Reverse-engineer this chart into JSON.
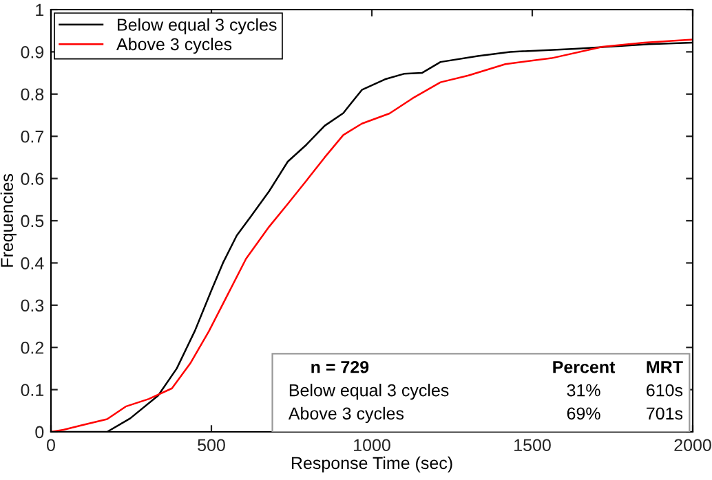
{
  "chart_data": {
    "type": "line",
    "xlabel": "Response Time (sec)",
    "ylabel": "Frequencies",
    "xlim": [
      0,
      2000
    ],
    "xticks": [
      0,
      500,
      1000,
      1500,
      2000
    ],
    "ylim": [
      0,
      1
    ],
    "yticks": [
      0,
      0.1,
      0.2,
      0.3,
      0.4,
      0.5,
      0.6,
      0.7,
      0.8,
      0.9,
      1
    ],
    "grid": false,
    "legend": "top left",
    "line_style": "solid",
    "marker": "none",
    "series": [
      {
        "name": "Below equal 3 cycles",
        "color": "#000000",
        "x": [
          0,
          175,
          247,
          334,
          392,
          449,
          500,
          536,
          579,
          623,
          680,
          738,
          796,
          853,
          911,
          969,
          1041,
          1100,
          1156,
          1214,
          1330,
          1431,
          1633,
          1864,
          2000
        ],
        "values": [
          0,
          0,
          0.032,
          0.086,
          0.15,
          0.24,
          0.335,
          0.4,
          0.465,
          0.51,
          0.57,
          0.64,
          0.68,
          0.725,
          0.755,
          0.81,
          0.835,
          0.848,
          0.85,
          0.876,
          0.89,
          0.9,
          0.907,
          0.918,
          0.922
        ]
      },
      {
        "name": "Above 3 cycles",
        "color": "#ff0000",
        "x": [
          0,
          39,
          97,
          175,
          233,
          305,
          377,
          434,
          492,
          550,
          608,
          680,
          738,
          796,
          853,
          911,
          969,
          1055,
          1127,
          1214,
          1301,
          1416,
          1560,
          1719,
          1849,
          2000
        ],
        "values": [
          0,
          0.005,
          0.016,
          0.03,
          0.06,
          0.078,
          0.103,
          0.162,
          0.238,
          0.324,
          0.41,
          0.486,
          0.54,
          0.595,
          0.65,
          0.703,
          0.73,
          0.754,
          0.79,
          0.828,
          0.844,
          0.871,
          0.885,
          0.912,
          0.922,
          0.929
        ]
      }
    ],
    "annotations": [
      "n = 729",
      "Percent",
      "MRT",
      "Below equal 3 cycles",
      "31%",
      "610s",
      "Above 3 cycles",
      "69%",
      "701s"
    ]
  }
}
